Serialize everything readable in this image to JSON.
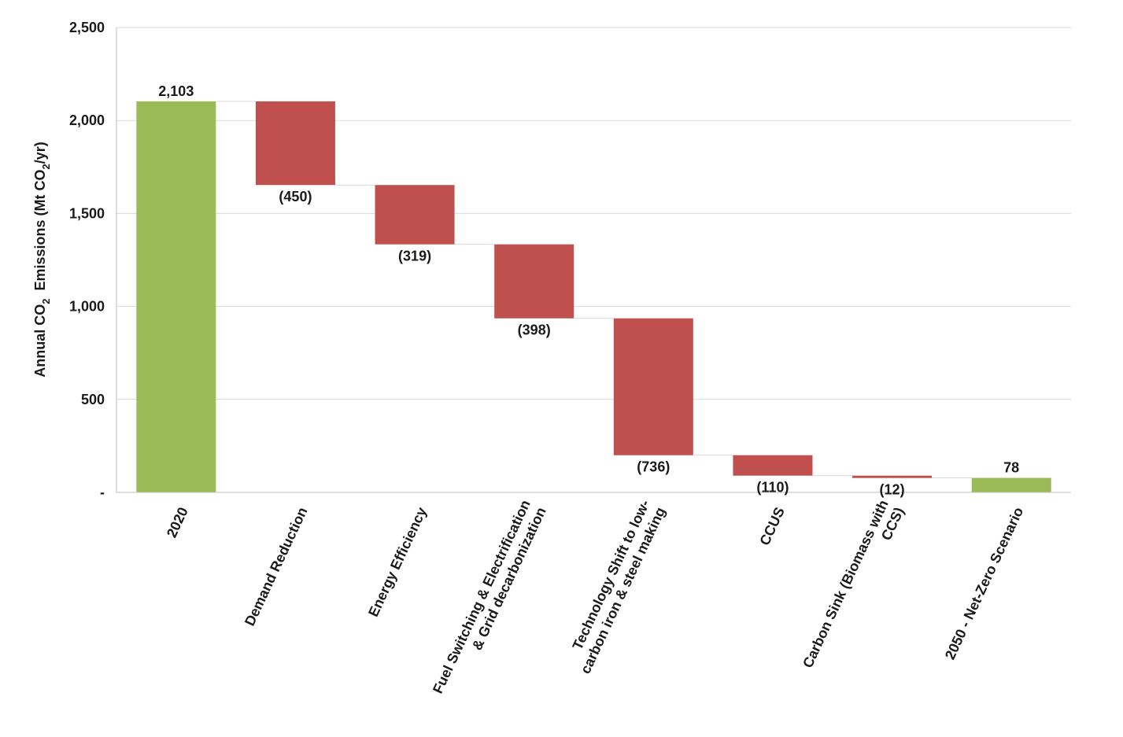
{
  "chart_data": {
    "type": "bar",
    "subtype": "waterfall",
    "categories": [
      "2020",
      "Demand Reduction",
      "Energy Efficiency",
      "Fuel Switching & Electrification & Grid decarbonization",
      "Technology Shift to low-carbon iron & steel making",
      "CCUS",
      "Carbon Sink (Biomass with CCS)",
      "2050 - Net-Zero Scenario"
    ],
    "category_label_lines": [
      [
        "2020"
      ],
      [
        "Demand Reduction"
      ],
      [
        "Energy Efficiency"
      ],
      [
        "Fuel Switching & Electrification",
        "& Grid decarbonization"
      ],
      [
        "Technology Shift to low-",
        "carbon iron & steel making"
      ],
      [
        "CCUS"
      ],
      [
        "Carbon Sink (Biomass with",
        "CCS)"
      ],
      [
        "2050 - Net-Zero Scenario"
      ]
    ],
    "values": [
      2103,
      -450,
      -319,
      -398,
      -736,
      -110,
      -12,
      78
    ],
    "kinds": [
      "total",
      "decrease",
      "decrease",
      "decrease",
      "decrease",
      "decrease",
      "decrease",
      "total"
    ],
    "data_labels": [
      "2,103",
      "(450)",
      "(319)",
      "(398)",
      "(736)",
      "(110)",
      "(12)",
      "78"
    ],
    "title": "",
    "xlabel": "",
    "ylabel": {
      "prefix": "Annual CO",
      "sub": "2",
      "middle": "  Emissions (Mt CO",
      "sub2": "2",
      "suffix": "/yr)"
    },
    "ylim": [
      0,
      2500
    ],
    "yticks": [
      0,
      500,
      1000,
      1500,
      2000,
      2500
    ],
    "ytick_labels": [
      "-",
      "500",
      "1,000",
      "1,500",
      "2,000",
      "2,500"
    ],
    "grid": true,
    "legend": "none",
    "colors": {
      "total": "#9bbb59",
      "decrease": "#c0504d",
      "grid": "#d9d9d9",
      "connector": "#d9d9d9",
      "axis": "#bfbfbf",
      "text": "#1a1a1a"
    }
  }
}
